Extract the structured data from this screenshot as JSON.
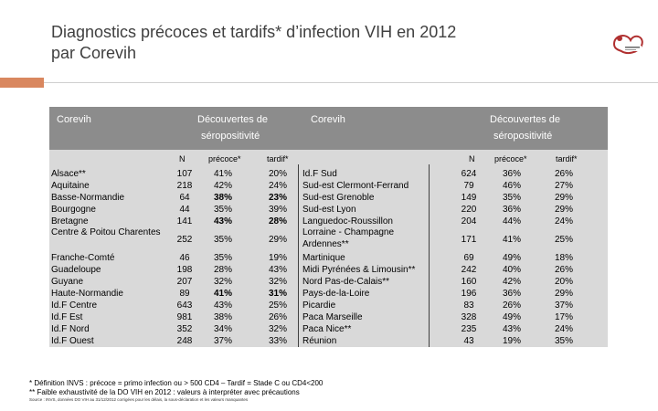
{
  "title_line1": "Diagnostics précoces et tardifs* d’infection VIH en 2012",
  "title_line2": "par Corevih",
  "header": {
    "corevih_left": "Corevih",
    "decouvertes_left_1": "Découvertes de",
    "decouvertes_left_2": "séropositivité",
    "corevih_right": "Corevih",
    "decouvertes_right_1": "Découvertes de",
    "decouvertes_right_2": "séropositivité"
  },
  "subheader": {
    "n": "N",
    "precoce": "précoce*",
    "tardif": "tardif*"
  },
  "left_rows": [
    {
      "name": "Alsace**",
      "n": "107",
      "precoce": "41%",
      "tardif": "20%"
    },
    {
      "name": "Aquitaine",
      "n": "218",
      "precoce": "42%",
      "tardif": "24%"
    },
    {
      "name": "Basse-Normandie",
      "n": "64",
      "precoce": "38%",
      "tardif": "23%"
    },
    {
      "name": "Bourgogne",
      "n": "44",
      "precoce": "35%",
      "tardif": "39%"
    },
    {
      "name": "Bretagne",
      "n": "141",
      "precoce": "43%",
      "tardif": "28%"
    },
    {
      "name": "Centre & Poitou Charentes",
      "n": "252",
      "precoce": "35%",
      "tardif": "29%"
    },
    {
      "name": "Franche-Comté",
      "n": "46",
      "precoce": "35%",
      "tardif": "19%"
    },
    {
      "name": "Guadeloupe",
      "n": "198",
      "precoce": "28%",
      "tardif": "43%"
    },
    {
      "name": "Guyane",
      "n": "207",
      "precoce": "32%",
      "tardif": "32%"
    },
    {
      "name": "Haute-Normandie",
      "n": "89",
      "precoce": "41%",
      "tardif": "31%"
    },
    {
      "name": "Id.F Centre",
      "n": "643",
      "precoce": "43%",
      "tardif": "25%"
    },
    {
      "name": "Id.F Est",
      "n": "981",
      "precoce": "38%",
      "tardif": "26%"
    },
    {
      "name": "Id.F Nord",
      "n": "352",
      "precoce": "34%",
      "tardif": "32%"
    },
    {
      "name": "Id.F Ouest",
      "n": "248",
      "precoce": "37%",
      "tardif": "33%"
    }
  ],
  "right_rows": [
    {
      "name": "Id.F Sud",
      "n": "624",
      "precoce": "36%",
      "tardif": "26%"
    },
    {
      "name": "Sud-est Clermont-Ferrand",
      "n": "79",
      "precoce": "46%",
      "tardif": "27%"
    },
    {
      "name": "Sud-est Grenoble",
      "n": "149",
      "precoce": "35%",
      "tardif": "29%"
    },
    {
      "name": "Sud-est Lyon",
      "n": "220",
      "precoce": "36%",
      "tardif": "29%"
    },
    {
      "name": "Languedoc-Roussillon",
      "n": "204",
      "precoce": "44%",
      "tardif": "24%"
    },
    {
      "name": "Lorraine - Champagne Ardennes**",
      "n": "171",
      "precoce": "41%",
      "tardif": "25%"
    },
    {
      "name": "Martinique",
      "n": "69",
      "precoce": "49%",
      "tardif": "18%"
    },
    {
      "name": "Midi Pyrénées & Limousin**",
      "n": "242",
      "precoce": "40%",
      "tardif": "26%"
    },
    {
      "name": "Nord Pas-de-Calais**",
      "n": "160",
      "precoce": "42%",
      "tardif": "20%"
    },
    {
      "name": "Pays-de-la-Loire",
      "n": "196",
      "precoce": "36%",
      "tardif": "29%"
    },
    {
      "name": "Picardie",
      "n": "83",
      "precoce": "26%",
      "tardif": "37%"
    },
    {
      "name": "Paca Marseille",
      "n": "328",
      "precoce": "49%",
      "tardif": "17%"
    },
    {
      "name": "Paca Nice**",
      "n": "235",
      "precoce": "43%",
      "tardif": "24%"
    },
    {
      "name": "Réunion",
      "n": "43",
      "precoce": "19%",
      "tardif": "35%"
    }
  ],
  "footnote1": "* Définition INVS : précoce = primo infection ou > 500 CD4 – Tardif = Stade C ou CD4<200",
  "footnote2": "** Faible exhaustivité de la DO VIH en 2012 : valeurs à interpréter avec précautions",
  "footnote_source": "Source : INVS, données DO VIH au 31/12/2012 corrigées pour les délais, la sous-déclaration et les valeurs manquantes",
  "colors": {
    "header_bg": "#8c8c8c",
    "table_bg": "#d9d9d9",
    "accent": "#d9875f",
    "title": "#404040"
  }
}
